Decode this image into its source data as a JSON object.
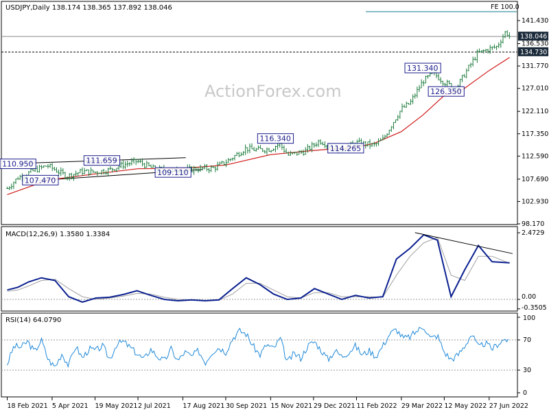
{
  "chart_data": [
    {
      "type": "candlestick",
      "title": "USDJPY,Daily  138.174 138.365 137.892 138.046",
      "watermark": "ActionForex.com",
      "fe_label": "FE 100.0",
      "y_ticks": [
        "141.430",
        "136.530",
        "131.770",
        "127.010",
        "122.110",
        "117.350",
        "112.590",
        "107.690",
        "102.930",
        "98.170"
      ],
      "price_tags": [
        {
          "text": "138.046",
          "price": 138.046,
          "style": "dark",
          "line": "solid"
        },
        {
          "text": "134.730",
          "price": 134.73,
          "style": "dark",
          "line": "dashed"
        }
      ],
      "annotations": [
        {
          "text": "110.950",
          "x": "2021-03-01",
          "price": 110.95
        },
        {
          "text": "107.470",
          "x": "2021-03-24",
          "price": 107.47
        },
        {
          "text": "111.659",
          "x": "2021-05-26",
          "price": 111.66
        },
        {
          "text": "109.110",
          "x": "2021-08-07",
          "price": 109.11
        },
        {
          "text": "116.340",
          "x": "2021-11-20",
          "price": 116.34
        },
        {
          "text": "114.265",
          "x": "2022-01-31",
          "price": 114.27
        },
        {
          "text": "131.340",
          "x": "2022-04-20",
          "price": 131.34
        },
        {
          "text": "126.350",
          "x": "2022-05-14",
          "price": 126.35
        }
      ],
      "price_path": [
        [
          "2021-02-18",
          105.7
        ],
        [
          "2021-03-01",
          108.0
        ],
        [
          "2021-03-15",
          109.3
        ],
        [
          "2021-03-31",
          110.6
        ],
        [
          "2021-04-20",
          108.3
        ],
        [
          "2021-05-05",
          109.3
        ],
        [
          "2021-05-19",
          109.2
        ],
        [
          "2021-06-02",
          109.6
        ],
        [
          "2021-06-16",
          110.7
        ],
        [
          "2021-07-01",
          111.5
        ],
        [
          "2021-07-19",
          109.8
        ],
        [
          "2021-08-04",
          109.6
        ],
        [
          "2021-08-17",
          109.6
        ],
        [
          "2021-09-02",
          109.9
        ],
        [
          "2021-09-17",
          110.0
        ],
        [
          "2021-09-30",
          111.3
        ],
        [
          "2021-10-20",
          114.2
        ],
        [
          "2021-11-01",
          113.9
        ],
        [
          "2021-11-15",
          114.1
        ],
        [
          "2021-11-24",
          115.2
        ],
        [
          "2021-12-03",
          112.8
        ],
        [
          "2021-12-20",
          113.6
        ],
        [
          "2021-12-29",
          114.9
        ],
        [
          "2022-01-04",
          115.9
        ],
        [
          "2022-01-24",
          113.8
        ],
        [
          "2022-02-11",
          115.4
        ],
        [
          "2022-03-01",
          114.9
        ],
        [
          "2022-03-10",
          116.1
        ],
        [
          "2022-03-22",
          120.3
        ],
        [
          "2022-03-29",
          122.6
        ],
        [
          "2022-04-07",
          123.9
        ],
        [
          "2022-04-20",
          128.5
        ],
        [
          "2022-05-01",
          130.2
        ],
        [
          "2022-05-12",
          128.3
        ],
        [
          "2022-05-24",
          127.0
        ],
        [
          "2022-06-02",
          130.1
        ],
        [
          "2022-06-15",
          134.4
        ],
        [
          "2022-06-27",
          135.4
        ],
        [
          "2022-07-05",
          135.9
        ],
        [
          "2022-07-14",
          139.1
        ],
        [
          "2022-07-18",
          138.05
        ]
      ],
      "ma_path": [
        [
          "2021-02-18",
          104.4
        ],
        [
          "2021-04-01",
          107.5
        ],
        [
          "2021-05-19",
          108.8
        ],
        [
          "2021-07-02",
          109.9
        ],
        [
          "2021-08-17",
          110.0
        ],
        [
          "2021-09-30",
          110.7
        ],
        [
          "2021-11-15",
          112.9
        ],
        [
          "2021-12-29",
          113.8
        ],
        [
          "2022-02-11",
          114.5
        ],
        [
          "2022-03-01",
          115.3
        ],
        [
          "2022-03-29",
          117.8
        ],
        [
          "2022-04-20",
          121.3
        ],
        [
          "2022-05-12",
          125.5
        ],
        [
          "2022-06-01",
          126.9
        ],
        [
          "2022-06-27",
          130.8
        ],
        [
          "2022-07-18",
          133.6
        ]
      ],
      "trendlines": [
        {
          "from": [
            "2021-03-04",
            111.05
          ],
          "to": [
            "2021-08-20",
            112.25
          ]
        },
        {
          "from": [
            "2021-03-19",
            107.35
          ],
          "to": [
            "2021-09-06",
            109.75
          ]
        }
      ],
      "x_ticks": [
        "18 Feb 2021",
        "5 Apr 2021",
        "19 May 2021",
        "2 Jul 2021",
        "17 Aug 2021",
        "30 Sep 2021",
        "15 Nov 2021",
        "29 Dec 2021",
        "11 Feb 2022",
        "29 Mar 2022",
        "12 May 2022",
        "27 Jun 2022"
      ]
    },
    {
      "type": "line",
      "title": "MACD(12,26,9) 1.3580 1.3384",
      "y_ticks": [
        "2.4729",
        "0.00",
        "-0.3505"
      ],
      "macd": [
        [
          "2021-02-18",
          0.35
        ],
        [
          "2021-03-01",
          0.45
        ],
        [
          "2021-03-12",
          0.65
        ],
        [
          "2021-03-25",
          0.8
        ],
        [
          "2021-04-08",
          0.7
        ],
        [
          "2021-04-22",
          0.1
        ],
        [
          "2021-05-06",
          -0.1
        ],
        [
          "2021-05-20",
          0.05
        ],
        [
          "2021-06-03",
          0.08
        ],
        [
          "2021-06-17",
          0.18
        ],
        [
          "2021-07-01",
          0.32
        ],
        [
          "2021-07-15",
          0.15
        ],
        [
          "2021-07-29",
          0.0
        ],
        [
          "2021-08-12",
          -0.05
        ],
        [
          "2021-08-26",
          -0.02
        ],
        [
          "2021-09-09",
          -0.05
        ],
        [
          "2021-09-23",
          -0.02
        ],
        [
          "2021-10-07",
          0.4
        ],
        [
          "2021-10-21",
          0.8
        ],
        [
          "2021-11-04",
          0.55
        ],
        [
          "2021-11-18",
          0.2
        ],
        [
          "2021-12-02",
          0.0
        ],
        [
          "2021-12-16",
          0.05
        ],
        [
          "2021-12-30",
          0.4
        ],
        [
          "2022-01-13",
          0.2
        ],
        [
          "2022-01-27",
          0.0
        ],
        [
          "2022-02-10",
          0.15
        ],
        [
          "2022-02-24",
          0.05
        ],
        [
          "2022-03-10",
          0.1
        ],
        [
          "2022-03-24",
          1.5
        ],
        [
          "2022-04-07",
          1.9
        ],
        [
          "2022-04-21",
          2.4
        ],
        [
          "2022-05-05",
          2.2
        ],
        [
          "2022-05-19",
          0.1
        ],
        [
          "2022-06-02",
          1.1
        ],
        [
          "2022-06-16",
          2.0
        ],
        [
          "2022-06-30",
          1.4
        ],
        [
          "2022-07-18",
          1.36
        ]
      ],
      "signal": [
        [
          "2021-02-18",
          0.3
        ],
        [
          "2021-03-01",
          0.35
        ],
        [
          "2021-03-12",
          0.5
        ],
        [
          "2021-03-25",
          0.7
        ],
        [
          "2021-04-08",
          0.75
        ],
        [
          "2021-04-22",
          0.4
        ],
        [
          "2021-05-06",
          0.1
        ],
        [
          "2021-05-20",
          0.0
        ],
        [
          "2021-06-03",
          0.05
        ],
        [
          "2021-06-17",
          0.12
        ],
        [
          "2021-07-01",
          0.22
        ],
        [
          "2021-07-15",
          0.2
        ],
        [
          "2021-07-29",
          0.08
        ],
        [
          "2021-08-12",
          0.0
        ],
        [
          "2021-08-26",
          -0.02
        ],
        [
          "2021-09-09",
          -0.04
        ],
        [
          "2021-09-23",
          -0.03
        ],
        [
          "2021-10-07",
          0.2
        ],
        [
          "2021-10-21",
          0.6
        ],
        [
          "2021-11-04",
          0.6
        ],
        [
          "2021-11-18",
          0.35
        ],
        [
          "2021-12-02",
          0.1
        ],
        [
          "2021-12-16",
          0.05
        ],
        [
          "2021-12-30",
          0.25
        ],
        [
          "2022-01-13",
          0.25
        ],
        [
          "2022-01-27",
          0.1
        ],
        [
          "2022-02-10",
          0.1
        ],
        [
          "2022-02-24",
          0.1
        ],
        [
          "2022-03-10",
          0.08
        ],
        [
          "2022-03-24",
          0.9
        ],
        [
          "2022-04-07",
          1.6
        ],
        [
          "2022-04-21",
          2.1
        ],
        [
          "2022-05-05",
          2.3
        ],
        [
          "2022-05-19",
          0.9
        ],
        [
          "2022-06-02",
          0.7
        ],
        [
          "2022-06-16",
          1.6
        ],
        [
          "2022-06-30",
          1.6
        ],
        [
          "2022-07-18",
          1.34
        ]
      ],
      "trendline": {
        "from": [
          "2022-04-12",
          2.48
        ],
        "to": [
          "2022-07-21",
          1.7
        ]
      },
      "colors": {
        "macd": "#0a1f8f",
        "signal": "#a0a0a0",
        "trend": "#000000"
      }
    },
    {
      "type": "line",
      "title": "RSI(14) 64.0790",
      "y_ticks": [
        "100",
        "70",
        "30",
        "0"
      ],
      "levels": [
        70,
        30
      ],
      "rsi": [
        [
          "2021-02-18",
          38
        ],
        [
          "2021-02-25",
          62
        ],
        [
          "2021-03-04",
          60
        ],
        [
          "2021-03-11",
          68
        ],
        [
          "2021-03-18",
          54
        ],
        [
          "2021-03-25",
          70
        ],
        [
          "2021-04-01",
          44
        ],
        [
          "2021-04-08",
          34
        ],
        [
          "2021-04-15",
          52
        ],
        [
          "2021-04-22",
          36
        ],
        [
          "2021-04-29",
          62
        ],
        [
          "2021-05-06",
          46
        ],
        [
          "2021-05-13",
          58
        ],
        [
          "2021-05-20",
          56
        ],
        [
          "2021-05-27",
          62
        ],
        [
          "2021-06-03",
          44
        ],
        [
          "2021-06-10",
          64
        ],
        [
          "2021-06-17",
          68
        ],
        [
          "2021-06-24",
          60
        ],
        [
          "2021-07-01",
          52
        ],
        [
          "2021-07-08",
          44
        ],
        [
          "2021-07-15",
          58
        ],
        [
          "2021-07-22",
          48
        ],
        [
          "2021-07-29",
          42
        ],
        [
          "2021-08-05",
          58
        ],
        [
          "2021-08-12",
          42
        ],
        [
          "2021-08-19",
          54
        ],
        [
          "2021-08-26",
          48
        ],
        [
          "2021-09-02",
          56
        ],
        [
          "2021-09-09",
          40
        ],
        [
          "2021-09-16",
          54
        ],
        [
          "2021-09-23",
          60
        ],
        [
          "2021-09-30",
          54
        ],
        [
          "2021-10-07",
          72
        ],
        [
          "2021-10-14",
          82
        ],
        [
          "2021-10-21",
          78
        ],
        [
          "2021-10-28",
          62
        ],
        [
          "2021-11-04",
          50
        ],
        [
          "2021-11-11",
          64
        ],
        [
          "2021-11-18",
          58
        ],
        [
          "2021-11-25",
          72
        ],
        [
          "2021-12-02",
          40
        ],
        [
          "2021-12-09",
          52
        ],
        [
          "2021-12-16",
          46
        ],
        [
          "2021-12-23",
          62
        ],
        [
          "2021-12-30",
          68
        ],
        [
          "2022-01-06",
          56
        ],
        [
          "2022-01-13",
          44
        ],
        [
          "2022-01-20",
          56
        ],
        [
          "2022-01-27",
          48
        ],
        [
          "2022-02-03",
          54
        ],
        [
          "2022-02-10",
          62
        ],
        [
          "2022-02-17",
          50
        ],
        [
          "2022-02-24",
          56
        ],
        [
          "2022-03-03",
          48
        ],
        [
          "2022-03-10",
          62
        ],
        [
          "2022-03-17",
          78
        ],
        [
          "2022-03-24",
          84
        ],
        [
          "2022-03-31",
          72
        ],
        [
          "2022-04-07",
          74
        ],
        [
          "2022-04-14",
          82
        ],
        [
          "2022-04-21",
          88
        ],
        [
          "2022-04-28",
          72
        ],
        [
          "2022-05-05",
          76
        ],
        [
          "2022-05-12",
          54
        ],
        [
          "2022-05-19",
          44
        ],
        [
          "2022-05-26",
          50
        ],
        [
          "2022-06-02",
          62
        ],
        [
          "2022-06-09",
          78
        ],
        [
          "2022-06-16",
          60
        ],
        [
          "2022-06-23",
          66
        ],
        [
          "2022-06-30",
          58
        ],
        [
          "2022-07-07",
          66
        ],
        [
          "2022-07-14",
          72
        ],
        [
          "2022-07-18",
          64
        ]
      ],
      "colors": {
        "rsi": "#1e88d8"
      }
    }
  ]
}
